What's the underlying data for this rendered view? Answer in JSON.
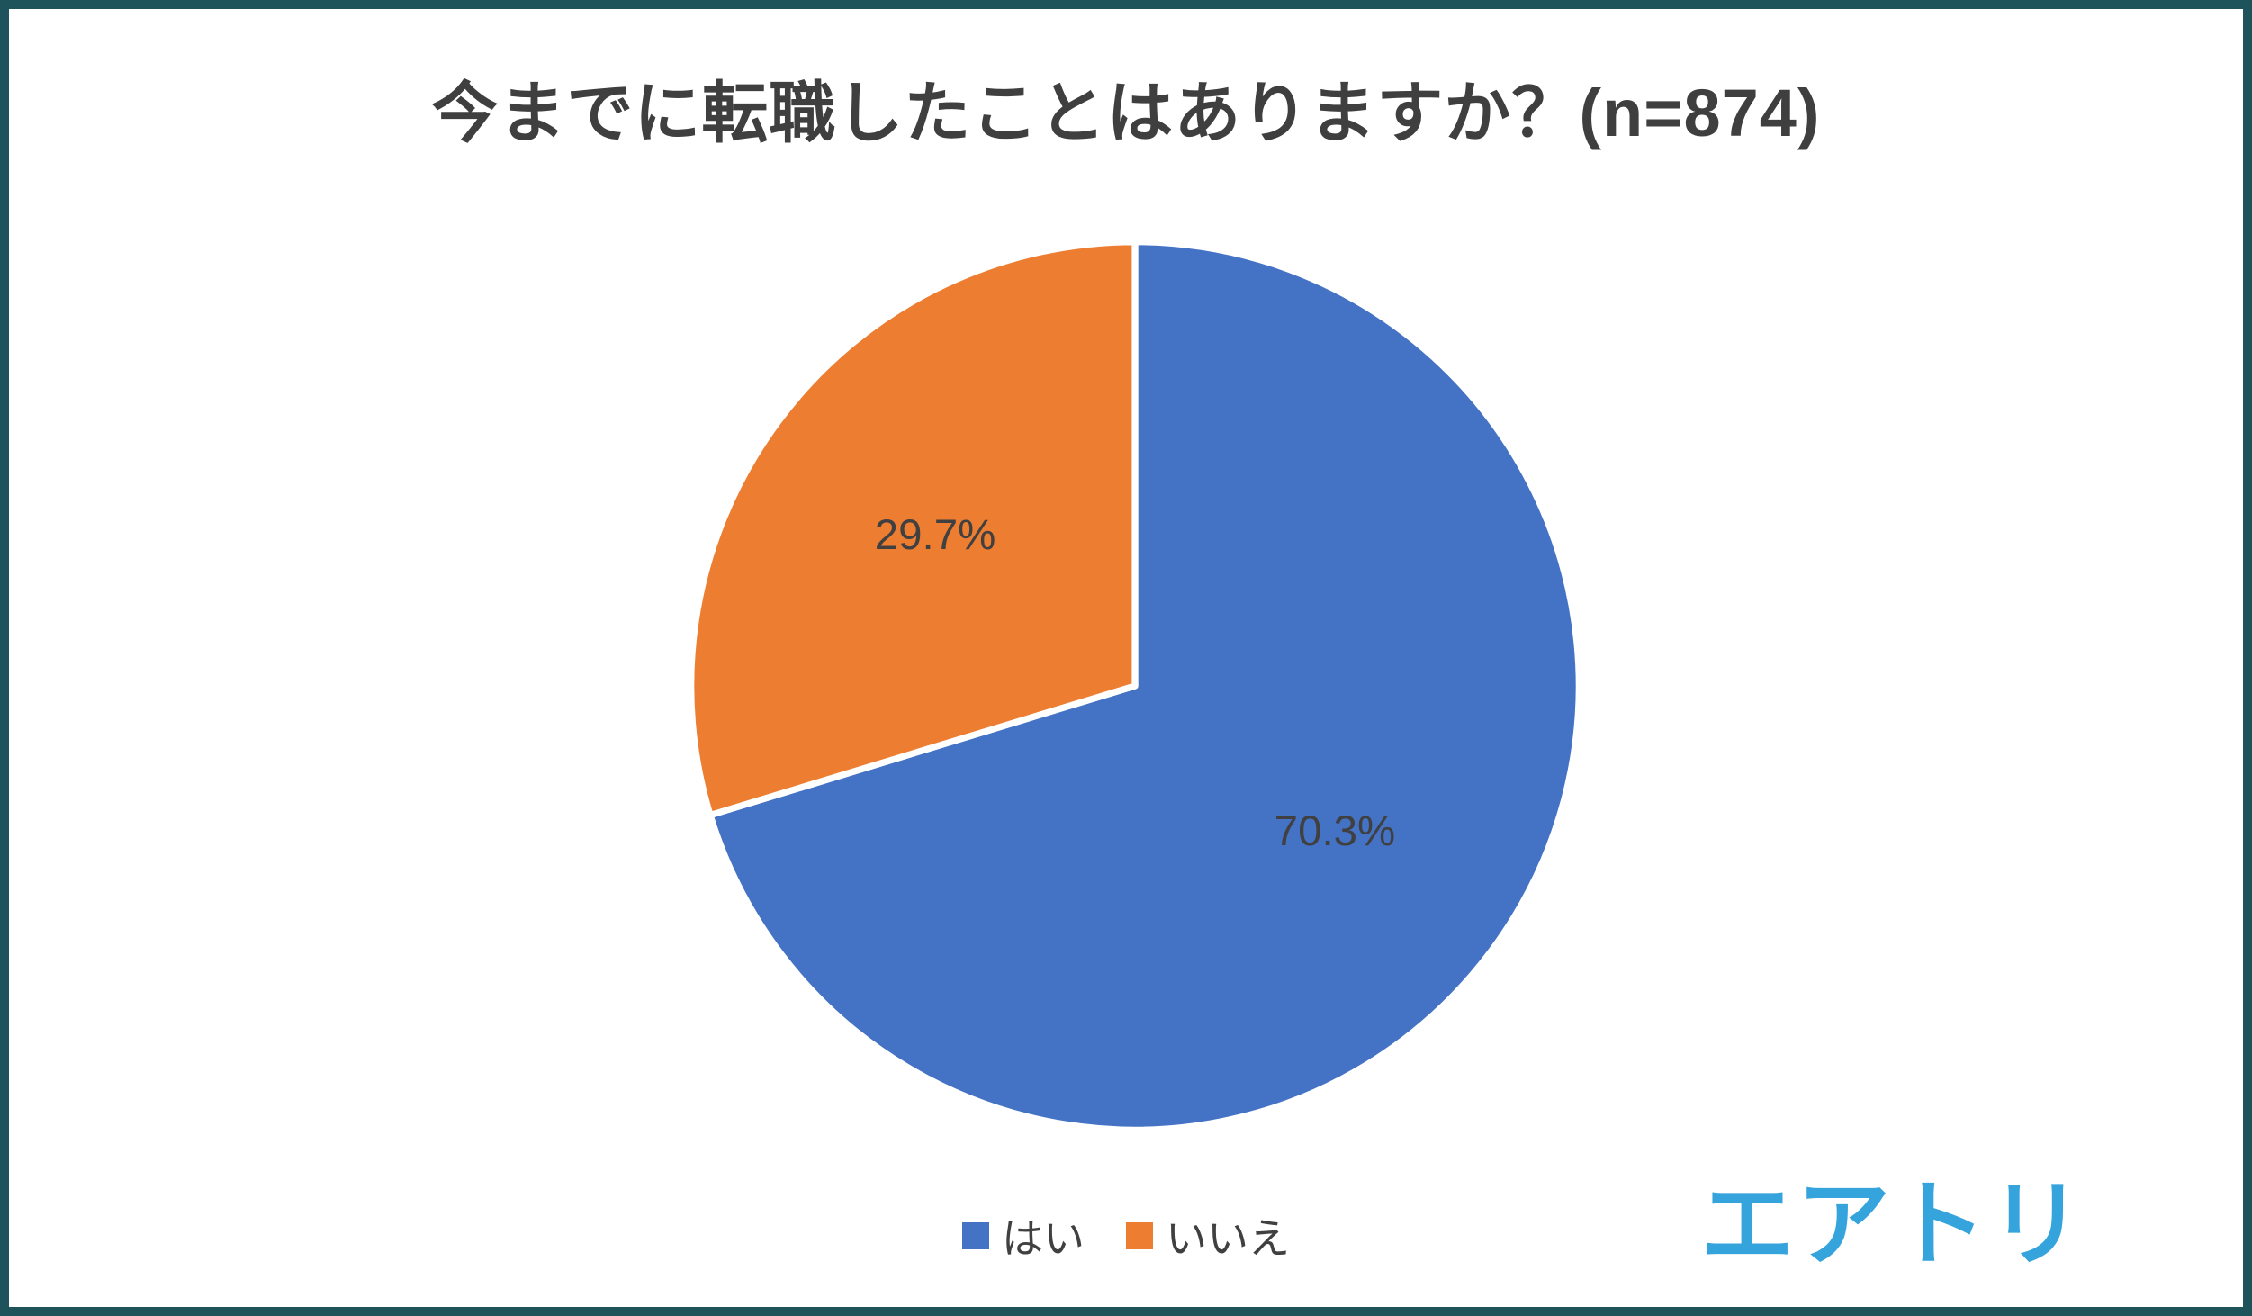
{
  "chart_data": {
    "type": "pie",
    "title": "今までに転職したことはありますか？(n=874)",
    "sample_size": 874,
    "unit": "%",
    "slices": [
      {
        "key": "yes",
        "label": "はい",
        "value": 70.3,
        "color": "#4472C4"
      },
      {
        "key": "no",
        "label": "いいえ",
        "value": 29.7,
        "color": "#ED7D31"
      }
    ],
    "data_labels": [
      "70.3%",
      "29.7%"
    ],
    "start_angle_deg": 0,
    "direction": "clockwise",
    "legend_position": "bottom",
    "label_color": "#404040"
  },
  "logo": {
    "text": "エアトリ",
    "color": "#35A3DC"
  },
  "frame": {
    "border_color": "#1F535C",
    "background": "#FFFFFF"
  }
}
